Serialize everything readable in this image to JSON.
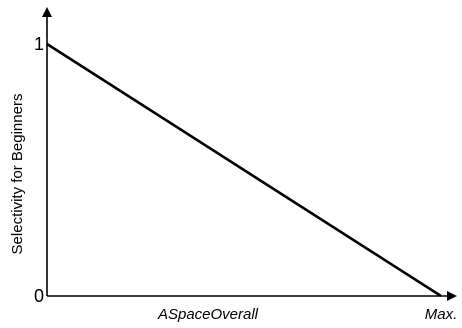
{
  "chart_data": {
    "type": "line",
    "title": "",
    "xlabel": "ASpaceOverall",
    "ylabel": "Selectivity for Beginners",
    "x_ticks": [
      {
        "value": 1,
        "label": "Max."
      }
    ],
    "y_ticks": [
      {
        "value": 0,
        "label": "0"
      },
      {
        "value": 1,
        "label": "1"
      }
    ],
    "xlim": [
      0,
      1
    ],
    "ylim": [
      0,
      1
    ],
    "grid": false,
    "series": [
      {
        "x": [
          0,
          1
        ],
        "y": [
          1,
          0
        ]
      }
    ]
  }
}
